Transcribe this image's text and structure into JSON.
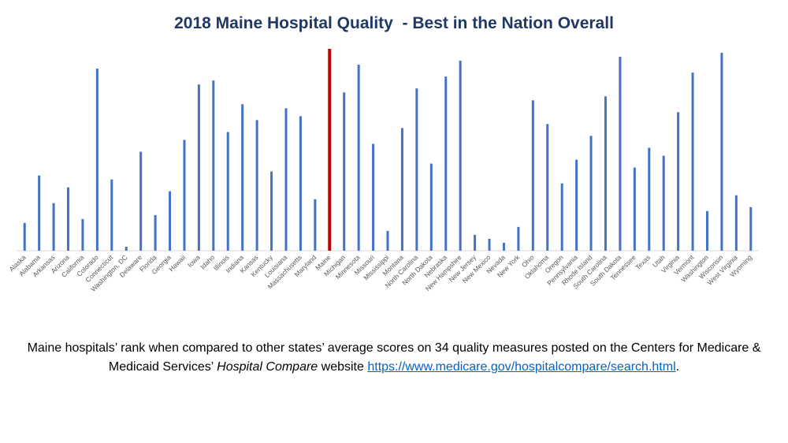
{
  "chart_data": {
    "type": "bar",
    "title": "2018 Maine Hospital Quality  - Best in the Nation Overall",
    "categories": [
      "Alaska",
      "Alabama",
      "Arkansas",
      "Arizona",
      "California",
      "Colorado",
      "Connecticut",
      "Washington, DC",
      "Delaware",
      "Florida",
      "Georgia",
      "Hawaii",
      "Iowa",
      "Idaho",
      "Illinois",
      "Indiana",
      "Kansas",
      "Kentucky",
      "Louisiana",
      "Massachusetts",
      "Maryland",
      "Maine",
      "Michigan",
      "Minnesota",
      "Missouri",
      "Mississippi",
      "Montana",
      "North Carolina",
      "North Dakota",
      "Nebraska",
      "New Hampshire",
      "New Jersey",
      "New Mexico",
      "Nevada",
      "New York",
      "Ohio",
      "Oklahoma",
      "Oregon",
      "Pennsylvania",
      "Rhode Island",
      "South Carolina",
      "South Dakota",
      "Tennessee",
      "Texas",
      "Utah",
      "Virginia",
      "Vermont",
      "Washington",
      "Wisconsin",
      "West Virginia",
      "Wyoming"
    ],
    "values": [
      7,
      19,
      12,
      16,
      8,
      46,
      18,
      1,
      25,
      9,
      15,
      28,
      42,
      43,
      30,
      37,
      33,
      20,
      36,
      34,
      13,
      51,
      40,
      47,
      27,
      5,
      31,
      41,
      22,
      44,
      48,
      4,
      3,
      2,
      6,
      38,
      32,
      17,
      23,
      29,
      39,
      49,
      21,
      26,
      24,
      35,
      45,
      10,
      50,
      14,
      11
    ],
    "highlight_category": "Maine",
    "colors": {
      "bar": "#4472c4",
      "highlight": "#c00000",
      "axis": "#d9d9d9"
    },
    "ylim": [
      0,
      51
    ],
    "grid": false,
    "legend": "none"
  },
  "caption": {
    "text": "Maine hospitals’ rank when compared to other states’ average scores on 34 quality measures posted on the Centers for Medicare & Medicaid Services’ ",
    "italic": "Hospital Compare",
    "after_italic": " website ",
    "link": "https://www.medicare.gov/hospitalcompare/search.html",
    "end": "."
  }
}
